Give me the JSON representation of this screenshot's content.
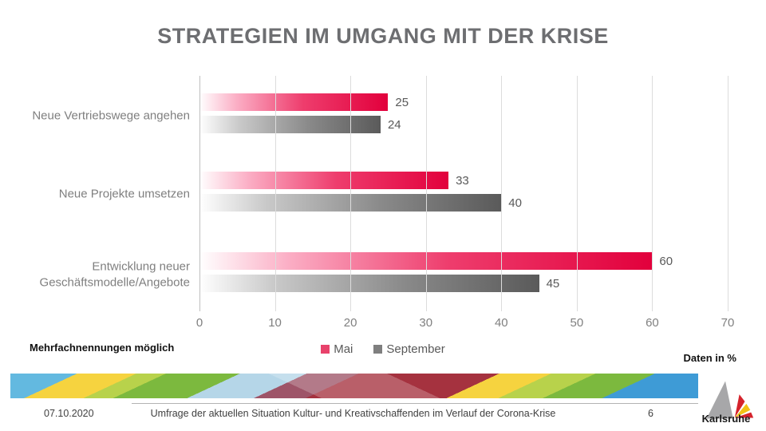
{
  "slide": {
    "title": "STRATEGIEN IM UMGANG MIT DER KRISE",
    "note_left": "Mehrfachnennungen möglich",
    "note_right": "Daten in %",
    "footer": {
      "date": "07.10.2020",
      "caption": "Umfrage der aktuellen Situation Kultur- und Kreativschaffenden im Verlauf der Corona-Krise",
      "page": "6",
      "logo_text": "Karlsruhe"
    }
  },
  "chart_data": {
    "type": "bar",
    "orientation": "horizontal",
    "title": "STRATEGIEN IM UMGANG MIT DER KRISE",
    "categories": [
      "Neue Vertriebswege angehen",
      "Neue Projekte umsetzen",
      "Entwicklung neuer Geschäftsmodelle/Angebote"
    ],
    "series": [
      {
        "name": "Mai",
        "color": "#e2003c",
        "legend_color": "#e8426b",
        "values": [
          25,
          33,
          60
        ]
      },
      {
        "name": "September",
        "color": "#595959",
        "legend_color": "#7f7f7f",
        "values": [
          24,
          40,
          45
        ]
      }
    ],
    "xticks": [
      0,
      10,
      20,
      30,
      40,
      50,
      60,
      70
    ],
    "xlim": [
      0,
      70
    ],
    "xlabel": "",
    "ylabel": "",
    "unit": "%",
    "grid": "vertical",
    "legend_position": "bottom",
    "bar_style": "gradient white to solid"
  },
  "colors": {
    "title_text": "#6d6e71",
    "axis_text": "#808080",
    "value_text": "#595959",
    "gridline": "#dcdcdc",
    "mai_bar_end": "#e2003c",
    "september_bar_end": "#5a5a5a"
  }
}
